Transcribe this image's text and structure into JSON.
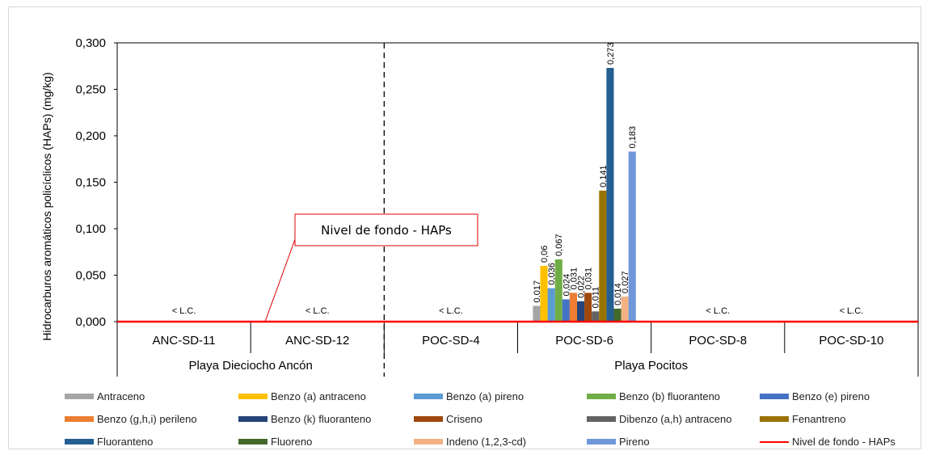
{
  "chart_data": {
    "type": "bar",
    "ylabel": "Hidrocarburos aromáticos policíclicos (HAPs) (mg/kg)",
    "ylim": [
      0,
      0.3
    ],
    "yticks": [
      "0,000",
      "0,050",
      "0,100",
      "0,150",
      "0,200",
      "0,250",
      "0,300"
    ],
    "categories": [
      "ANC-SD-11",
      "ANC-SD-12",
      "POC-SD-4",
      "POC-SD-6",
      "POC-SD-8",
      "POC-SD-10"
    ],
    "groups": [
      {
        "label": "Playa Dieciocho Ancón",
        "categories": [
          "ANC-SD-11",
          "ANC-SD-12"
        ]
      },
      {
        "label": "Playa Pocitos",
        "categories": [
          "POC-SD-4",
          "POC-SD-6",
          "POC-SD-8",
          "POC-SD-10"
        ]
      }
    ],
    "below_lc_label": "< L.C.",
    "below_lc_categories": [
      "ANC-SD-11",
      "ANC-SD-12",
      "POC-SD-4",
      "POC-SD-8",
      "POC-SD-10"
    ],
    "series": [
      {
        "name": "Antraceno",
        "color": "#a5a5a5",
        "values": [
          null,
          null,
          null,
          0.017,
          null,
          null
        ],
        "labels": [
          null,
          null,
          null,
          "0,017",
          null,
          null
        ]
      },
      {
        "name": "Benzo (a) antraceno",
        "color": "#ffc000",
        "values": [
          null,
          null,
          null,
          0.06,
          null,
          null
        ],
        "labels": [
          null,
          null,
          null,
          "0,06",
          null,
          null
        ]
      },
      {
        "name": "Benzo (a) pireno",
        "color": "#5b9bd5",
        "values": [
          null,
          null,
          null,
          0.036,
          null,
          null
        ],
        "labels": [
          null,
          null,
          null,
          "0,036",
          null,
          null
        ]
      },
      {
        "name": "Benzo (b) fluoranteno",
        "color": "#70ad47",
        "values": [
          null,
          null,
          null,
          0.067,
          null,
          null
        ],
        "labels": [
          null,
          null,
          null,
          "0,067",
          null,
          null
        ]
      },
      {
        "name": "Benzo (e) pireno",
        "color": "#4472c4",
        "values": [
          null,
          null,
          null,
          0.024,
          null,
          null
        ],
        "labels": [
          null,
          null,
          null,
          "0,024",
          null,
          null
        ]
      },
      {
        "name": "Benzo (g,h,i) perileno",
        "color": "#ed7d31",
        "values": [
          null,
          null,
          null,
          0.031,
          null,
          null
        ],
        "labels": [
          null,
          null,
          null,
          "0,031",
          null,
          null
        ]
      },
      {
        "name": "Benzo (k) fluoranteno",
        "color": "#264478",
        "values": [
          null,
          null,
          null,
          0.022,
          null,
          null
        ],
        "labels": [
          null,
          null,
          null,
          "0,022",
          null,
          null
        ]
      },
      {
        "name": "Criseno",
        "color": "#9e480e",
        "values": [
          null,
          null,
          null,
          0.031,
          null,
          null
        ],
        "labels": [
          null,
          null,
          null,
          "0,031",
          null,
          null
        ]
      },
      {
        "name": "Dibenzo (a,h) antraceno",
        "color": "#636363",
        "values": [
          null,
          null,
          null,
          0.011,
          null,
          null
        ],
        "labels": [
          null,
          null,
          null,
          "0,011",
          null,
          null
        ]
      },
      {
        "name": "Fenantreno",
        "color": "#997300",
        "values": [
          null,
          null,
          null,
          0.141,
          null,
          null
        ],
        "labels": [
          null,
          null,
          null,
          "0,141",
          null,
          null
        ]
      },
      {
        "name": "Fluoranteno",
        "color": "#255e91",
        "values": [
          null,
          null,
          null,
          0.273,
          null,
          null
        ],
        "labels": [
          null,
          null,
          null,
          "0,273",
          null,
          null
        ]
      },
      {
        "name": "Fluoreno",
        "color": "#43682b",
        "values": [
          null,
          null,
          null,
          0.014,
          null,
          null
        ],
        "labels": [
          null,
          null,
          null,
          "0,014",
          null,
          null
        ]
      },
      {
        "name": "Indeno (1,2,3-cd)",
        "color": "#f4b183",
        "values": [
          null,
          null,
          null,
          0.027,
          null,
          null
        ],
        "labels": [
          null,
          null,
          null,
          "0,027",
          null,
          null
        ]
      },
      {
        "name": "Pireno",
        "color": "#6f98da",
        "values": [
          null,
          null,
          null,
          0.183,
          null,
          null
        ],
        "labels": [
          null,
          null,
          null,
          "0,183",
          null,
          null
        ]
      }
    ],
    "reference_line": {
      "name": "Nivel de fondo - HAPs",
      "value": 0.0,
      "color": "#ff0000"
    },
    "annotation": {
      "text": "Nivel de fondo - HAPs"
    },
    "legend_position": "bottom"
  }
}
